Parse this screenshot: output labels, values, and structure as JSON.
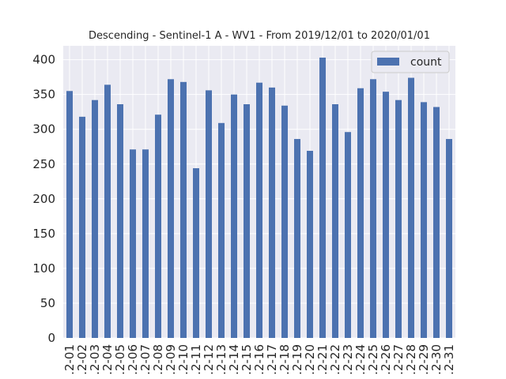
{
  "chart_data": {
    "type": "bar",
    "title": "Descending - Sentinel-1 A - WV1 - From 2019/12/01 to 2020/01/01",
    "xlabel": "",
    "ylabel": "",
    "ylim": [
      0,
      420
    ],
    "yticks": [
      0,
      50,
      100,
      150,
      200,
      250,
      300,
      350,
      400
    ],
    "grid": true,
    "legend_position": "top-right",
    "categories": [
      ".2-01",
      ".2-02",
      ".2-03",
      ".2-04",
      ".2-05",
      ".2-06",
      ".2-07",
      ".2-08",
      ".2-09",
      ".2-10",
      ".2-11",
      ".2-12",
      ".2-13",
      ".2-14",
      ".2-15",
      ".2-16",
      ".2-17",
      ".2-18",
      ".2-19",
      ".2-20",
      ".2-21",
      ".2-22",
      ".2-23",
      ".2-24",
      ".2-25",
      ".2-26",
      ".2-27",
      ".2-28",
      ".2-29",
      ".2-30",
      ".2-31"
    ],
    "series": [
      {
        "name": "count",
        "color": "#4c72b0",
        "values": [
          355,
          318,
          342,
          364,
          336,
          271,
          271,
          321,
          372,
          368,
          244,
          356,
          309,
          350,
          336,
          367,
          360,
          334,
          286,
          269,
          403,
          336,
          296,
          359,
          372,
          354,
          342,
          374,
          339,
          332,
          286
        ]
      }
    ],
    "colors": {
      "background": "#eaeaf2",
      "grid": "#ffffff",
      "bar": "#4c72b0"
    }
  }
}
